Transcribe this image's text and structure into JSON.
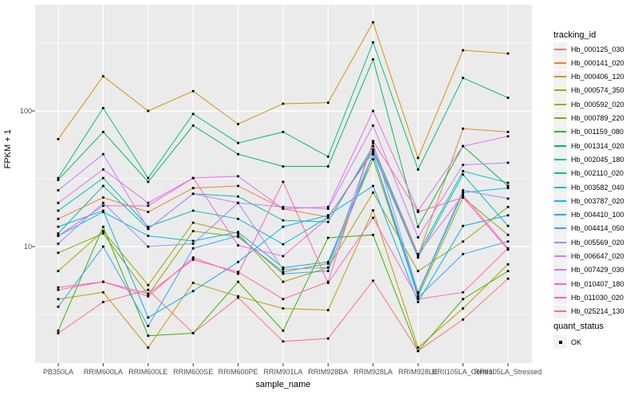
{
  "figure": {
    "kind": "ggplot-style line chart",
    "background": "#FFFFFF",
    "panel_background": "#EBEBEB",
    "grid_color": "#FFFFFF",
    "tick_label_color": "#4D4D4D",
    "marker_color": "#000000"
  },
  "axes": {
    "x_title": "sample_name",
    "y_title": "FPKM + 1",
    "y_tick_labels": [
      "100",
      "10"
    ]
  },
  "legend": {
    "tracking_title": "tracking_id",
    "quant_title": "quant_status",
    "quant_items": [
      {
        "label": "OK",
        "marker": "black-square"
      }
    ]
  },
  "chart_data": {
    "type": "line",
    "title": "",
    "xlabel": "sample_name",
    "ylabel": "FPKM + 1",
    "y_scale": "log10",
    "y_ticks": [
      10,
      100
    ],
    "ylim_log10": [
      0.13,
      2.78
    ],
    "grid": true,
    "legend_position": "right",
    "marker": "black square (quant_status = OK) at every point",
    "categories": [
      "PB350LA",
      "RRIM600LA",
      "RRIM600LE",
      "RRIM600SE",
      "RRIM600PE",
      "RRIM901LA",
      "RRIM928BA",
      "RRIM928LA",
      "RRIM928LE",
      "RRII105LA_Control",
      "RRII105LA_Stressed"
    ],
    "series": [
      {
        "name": "Hb_000125_030",
        "color": "#F8766D",
        "values": [
          2.3,
          3.9,
          4.8,
          2.3,
          4.2,
          2.0,
          2.1,
          5.6,
          1.7,
          2.9,
          5.8
        ]
      },
      {
        "name": "Hb_000141_020",
        "color": "#EA8331",
        "values": [
          16,
          23,
          18,
          27,
          28,
          19,
          16.5,
          50,
          8.5,
          74,
          70
        ]
      },
      {
        "name": "Hb_000406_120",
        "color": "#D89000",
        "values": [
          62,
          180,
          100,
          140,
          80,
          113,
          115,
          450,
          45,
          280,
          265
        ]
      },
      {
        "name": "Hb_000574_350",
        "color": "#C09B00",
        "values": [
          4.1,
          4.6,
          1.8,
          5.4,
          4.3,
          3.5,
          3.4,
          18.5,
          1.8,
          3.5,
          7.4
        ]
      },
      {
        "name": "Hb_000592_020",
        "color": "#A3A500",
        "values": [
          6.6,
          13,
          5.2,
          15,
          12.5,
          5.5,
          7.0,
          25,
          6.6,
          10.9,
          19.6
        ]
      },
      {
        "name": "Hb_000789_220",
        "color": "#7CAE00",
        "values": [
          9,
          12.5,
          4.4,
          13,
          11.8,
          6.5,
          7.5,
          44,
          4.3,
          23,
          12.2
        ]
      },
      {
        "name": "Hb_001159_080",
        "color": "#39B600",
        "values": [
          2.4,
          14,
          2.2,
          2.3,
          5.5,
          2.4,
          11.6,
          12.2,
          1.7,
          4.1,
          6.6
        ]
      },
      {
        "name": "Hb_001314_020",
        "color": "#00BB4E",
        "values": [
          31,
          70,
          30,
          78,
          48,
          39,
          39,
          240,
          14,
          55,
          28
        ]
      },
      {
        "name": "Hb_002045_180",
        "color": "#00BF7D",
        "values": [
          32,
          105,
          32,
          95,
          58,
          70,
          46,
          320,
          37,
          175,
          125
        ]
      },
      {
        "name": "Hb_002110_020",
        "color": "#00C1A3",
        "values": [
          12.5,
          28,
          13.5,
          24.5,
          23.4,
          15.6,
          15.2,
          55,
          8.8,
          36,
          29.5
        ]
      },
      {
        "name": "Hb_003582_040",
        "color": "#00BFC4",
        "values": [
          18.4,
          32,
          14,
          18.4,
          16,
          10.4,
          16.5,
          50,
          8.3,
          34,
          14.2
        ]
      },
      {
        "name": "Hb_003787_020",
        "color": "#00BAE0",
        "values": [
          12,
          18,
          12,
          11,
          12.8,
          7.0,
          7.7,
          48,
          4.5,
          25,
          27
        ]
      },
      {
        "name": "Hb_004410_100",
        "color": "#00B0F6",
        "values": [
          14,
          18.4,
          3.0,
          4.7,
          7.7,
          14,
          17,
          28,
          3.9,
          14.2,
          17
        ]
      },
      {
        "name": "Hb_004414_050",
        "color": "#35A2FF",
        "values": [
          3.6,
          10,
          2.6,
          9.7,
          12,
          6.3,
          6.6,
          48,
          4.2,
          8.8,
          10.9
        ]
      },
      {
        "name": "Hb_005569_020",
        "color": "#9590FF",
        "values": [
          10.5,
          21,
          10,
          10.5,
          21,
          6.8,
          7.0,
          58,
          4.6,
          26,
          22.6
        ]
      },
      {
        "name": "Hb_006647_020",
        "color": "#C77CFF",
        "values": [
          26,
          48,
          13.5,
          24.5,
          21,
          19.6,
          19,
          78,
          11.7,
          40,
          41.5
        ]
      },
      {
        "name": "Hb_007429_030",
        "color": "#E76BF3",
        "values": [
          21,
          37,
          21,
          32,
          33,
          19,
          19.6,
          100,
          18.4,
          55,
          65
        ]
      },
      {
        "name": "Hb_010407_180",
        "color": "#FA62DB",
        "values": [
          12,
          20,
          20,
          32,
          10.2,
          8.5,
          16.3,
          52,
          8.8,
          24,
          9.7
        ]
      },
      {
        "name": "Hb_011030_020",
        "color": "#FF62BC",
        "values": [
          5.0,
          5.5,
          4.3,
          8.3,
          6.3,
          30,
          5.4,
          16.3,
          4.1,
          4.6,
          9.7
        ]
      },
      {
        "name": "Hb_025214_130",
        "color": "#FF6A98",
        "values": [
          4.8,
          5.5,
          4.5,
          8.0,
          6.5,
          4.1,
          5.5,
          60,
          18,
          23,
          9.5
        ]
      }
    ]
  }
}
